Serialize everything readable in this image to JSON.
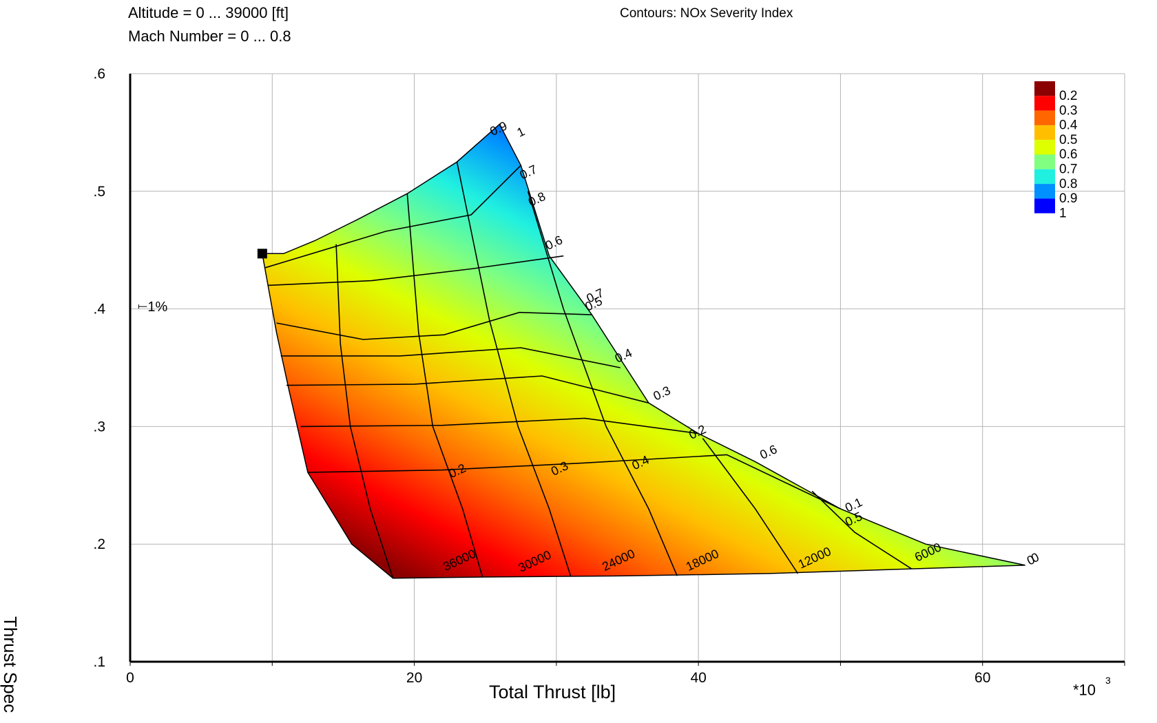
{
  "header": {
    "altitude_range": "Altitude = 0 ... 39000 [ft]",
    "mach_range": "Mach Number = 0 ... 0.8",
    "contours_title": "Contours: NOx Severity Index"
  },
  "chart_data": {
    "type": "contour",
    "title": "Contours: NOx Severity Index",
    "xlabel": "Total Thrust [lb]",
    "ylabel": "Thrust Spec",
    "x_multiplier": "*10",
    "x_multiplier_exp": "3",
    "xlim": [
      0,
      70
    ],
    "ylim": [
      0.1,
      0.6
    ],
    "x_ticks": [
      "0",
      "20",
      "40",
      "60"
    ],
    "x_tick_values": [
      0,
      20,
      40,
      60
    ],
    "y_ticks": [
      ".1",
      ".2",
      ".3",
      ".4",
      ".5",
      ".6"
    ],
    "y_tick_values": [
      0.1,
      0.2,
      0.3,
      0.4,
      0.5,
      0.6
    ],
    "grid": true,
    "legend_position": "top-right",
    "legend": [
      {
        "label": "0.2",
        "color": "#8b0000"
      },
      {
        "label": "0.3",
        "color": "#ff0000"
      },
      {
        "label": "0.4",
        "color": "#ff6600"
      },
      {
        "label": "0.5",
        "color": "#ffbf00"
      },
      {
        "label": "0.6",
        "color": "#ddff00"
      },
      {
        "label": "0.7",
        "color": "#80ff80"
      },
      {
        "label": "0.8",
        "color": "#20f0e0"
      },
      {
        "label": "0.9",
        "color": "#0090ff"
      },
      {
        "label": "1",
        "color": "#0000ff"
      }
    ],
    "design_point": {
      "x": 9.3,
      "y": 0.447
    },
    "tolerance_marker": {
      "label": "1%",
      "x": 0.6,
      "y": 0.402
    },
    "envelope": {
      "top_edge": [
        [
          9.3,
          0.447
        ],
        [
          10.8,
          0.447
        ],
        [
          13,
          0.458
        ],
        [
          16,
          0.476
        ],
        [
          19.5,
          0.498
        ],
        [
          23,
          0.525
        ],
        [
          26,
          0.557
        ]
      ],
      "right_edge": [
        [
          26,
          0.557
        ],
        [
          27.5,
          0.522
        ],
        [
          29.5,
          0.445
        ],
        [
          32.5,
          0.395
        ],
        [
          36.5,
          0.32
        ],
        [
          40,
          0.294
        ],
        [
          44,
          0.27
        ],
        [
          50,
          0.23
        ],
        [
          56,
          0.2
        ],
        [
          63,
          0.182
        ]
      ],
      "bottom_edge": [
        [
          63,
          0.182
        ],
        [
          55,
          0.179
        ],
        [
          45,
          0.175
        ],
        [
          35,
          0.173
        ],
        [
          25,
          0.172
        ],
        [
          18.5,
          0.171
        ]
      ],
      "left_edge": [
        [
          18.5,
          0.171
        ],
        [
          15.6,
          0.2
        ],
        [
          12.5,
          0.261
        ],
        [
          11.2,
          0.33
        ],
        [
          10.3,
          0.38
        ],
        [
          9.3,
          0.447
        ]
      ]
    },
    "mach_lines": [
      {
        "label": "0",
        "points": [
          [
            10.3,
            0.388
          ],
          [
            16.4,
            0.374
          ],
          [
            22.1,
            0.378
          ],
          [
            27.4,
            0.397
          ],
          [
            32.5,
            0.395
          ]
        ]
      },
      {
        "label": "0.1",
        "points": [
          [
            12.5,
            0.261
          ],
          [
            22,
            0.263
          ],
          [
            32,
            0.269
          ],
          [
            42,
            0.276
          ],
          [
            50,
            0.23
          ]
        ]
      },
      {
        "label": "0.2",
        "points": [
          [
            12,
            0.3
          ],
          [
            22,
            0.301
          ],
          [
            32,
            0.307
          ],
          [
            40,
            0.294
          ]
        ]
      },
      {
        "label": "0.3",
        "points": [
          [
            11,
            0.335
          ],
          [
            20,
            0.336
          ],
          [
            29,
            0.343
          ],
          [
            36.5,
            0.32
          ]
        ]
      },
      {
        "label": "0.4",
        "points": [
          [
            10.6,
            0.36
          ],
          [
            19,
            0.36
          ],
          [
            27.5,
            0.367
          ],
          [
            34.5,
            0.35
          ]
        ]
      },
      {
        "label": "0.6",
        "points": [
          [
            9.7,
            0.42
          ],
          [
            17,
            0.424
          ],
          [
            24,
            0.434
          ],
          [
            30.5,
            0.445
          ]
        ]
      },
      {
        "label": "0.7",
        "points": [
          [
            9.5,
            0.435
          ],
          [
            18,
            0.466
          ],
          [
            24,
            0.48
          ],
          [
            27.5,
            0.522
          ]
        ]
      }
    ],
    "altitude_lines": [
      {
        "label": "36000",
        "points": [
          [
            18.5,
            0.171
          ],
          [
            16.9,
            0.23
          ],
          [
            15.5,
            0.3
          ],
          [
            14.8,
            0.37
          ],
          [
            14.5,
            0.455
          ]
        ]
      },
      {
        "label": "30000",
        "points": [
          [
            24.8,
            0.172
          ],
          [
            23.4,
            0.23
          ],
          [
            21.3,
            0.3
          ],
          [
            20.3,
            0.38
          ],
          [
            19.5,
            0.498
          ]
        ]
      },
      {
        "label": "24000",
        "points": [
          [
            31,
            0.173
          ],
          [
            29.5,
            0.23
          ],
          [
            27.3,
            0.3
          ],
          [
            25.3,
            0.39
          ],
          [
            23,
            0.525
          ]
        ]
      },
      {
        "label": "18000",
        "points": [
          [
            38.5,
            0.173
          ],
          [
            36.5,
            0.23
          ],
          [
            33.5,
            0.3
          ],
          [
            30.5,
            0.4
          ],
          [
            28,
            0.5
          ]
        ]
      },
      {
        "label": "12000",
        "points": [
          [
            47,
            0.175
          ],
          [
            44,
            0.23
          ],
          [
            40.3,
            0.29
          ]
        ]
      },
      {
        "label": "6000",
        "points": [
          [
            55,
            0.179
          ],
          [
            51,
            0.21
          ],
          [
            48,
            0.245
          ]
        ]
      },
      {
        "label": "0",
        "points": [
          [
            63,
            0.182
          ]
        ]
      }
    ],
    "contour_labels": [
      {
        "text": "0.2",
        "x": 22.6,
        "y": 0.256
      },
      {
        "text": "0.3",
        "x": 29.8,
        "y": 0.258
      },
      {
        "text": "0.4",
        "x": 35.5,
        "y": 0.263
      },
      {
        "text": "0.5",
        "x": 50.5,
        "y": 0.215
      },
      {
        "text": "0.6",
        "x": 44.5,
        "y": 0.272
      },
      {
        "text": "0.1",
        "x": 50.5,
        "y": 0.227
      },
      {
        "text": "0.2",
        "x": 39.5,
        "y": 0.289
      },
      {
        "text": "0.3",
        "x": 37,
        "y": 0.322
      },
      {
        "text": "0.4",
        "x": 34.3,
        "y": 0.354
      },
      {
        "text": "0.6",
        "x": 29.4,
        "y": 0.45
      },
      {
        "text": "0.7",
        "x": 32.3,
        "y": 0.405
      },
      {
        "text": "0.5",
        "x": 32.2,
        "y": 0.398
      },
      {
        "text": "0.8",
        "x": 28.2,
        "y": 0.487
      },
      {
        "text": "0.7",
        "x": 27.6,
        "y": 0.51
      },
      {
        "text": "0.9",
        "x": 25.5,
        "y": 0.547
      },
      {
        "text": "1",
        "x": 27.4,
        "y": 0.546
      },
      {
        "text": "36000",
        "x": 22.2,
        "y": 0.177
      },
      {
        "text": "30000",
        "x": 27.5,
        "y": 0.176
      },
      {
        "text": "24000",
        "x": 33.4,
        "y": 0.177
      },
      {
        "text": "18000",
        "x": 39.3,
        "y": 0.177
      },
      {
        "text": "12000",
        "x": 47.2,
        "y": 0.179
      },
      {
        "text": "6000",
        "x": 55.4,
        "y": 0.185
      },
      {
        "text": "0",
        "x": 63.3,
        "y": 0.182
      },
      {
        "text": "0",
        "x": 63.6,
        "y": 0.184
      }
    ]
  }
}
